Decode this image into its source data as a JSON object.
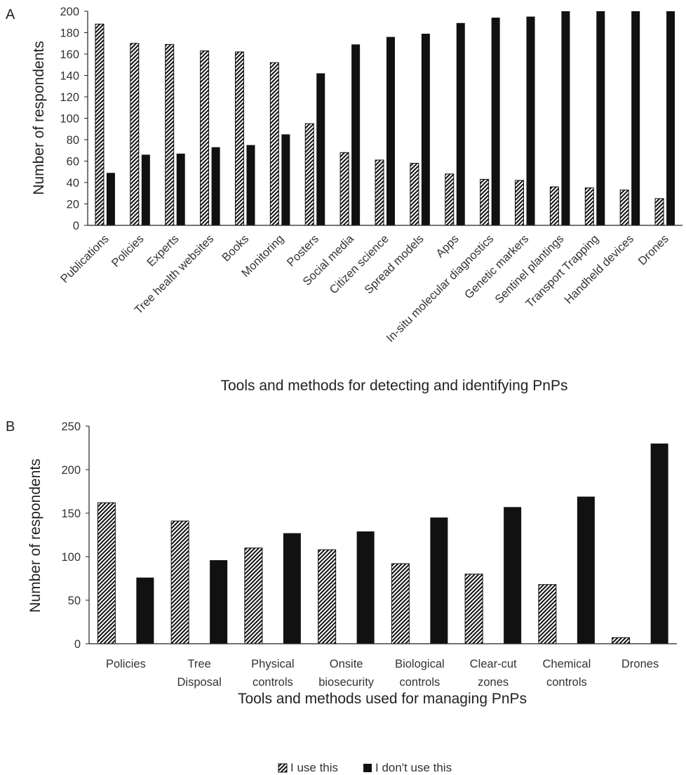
{
  "legend": {
    "use": "I use this",
    "dont_use": "I don't use this"
  },
  "colors": {
    "use_fill": "hatched-black-white",
    "dont_use": "#111111",
    "axis": "#222222"
  },
  "chart_data": [
    {
      "panel_label": "A",
      "type": "bar",
      "xlabel": "Tools and methods for detecting and identifying PnPs",
      "ylabel": "Number of respondents",
      "ylim": [
        0,
        200
      ],
      "yticks": [
        0,
        20,
        40,
        60,
        80,
        100,
        120,
        140,
        160,
        180,
        200
      ],
      "grid": false,
      "legend_position": "bottom-center",
      "categories": [
        "Publications",
        "Policies",
        "Experts",
        "Tree health websites",
        "Books",
        "Monitoring",
        "Posters",
        "Social media",
        "Citizen science",
        "Spread models",
        "Apps",
        "In-situ molecular diagnostics",
        "Genetic markers",
        "Sentinel plantings",
        "Transport Trapping",
        "Handheld devices",
        "Drones"
      ],
      "series": [
        {
          "name": "I use this",
          "values": [
            188,
            170,
            169,
            163,
            162,
            152,
            95,
            68,
            61,
            58,
            48,
            43,
            42,
            36,
            35,
            33,
            25
          ]
        },
        {
          "name": "I don't use this",
          "values": [
            49,
            66,
            67,
            73,
            75,
            85,
            142,
            169,
            176,
            179,
            189,
            194,
            195,
            200,
            200,
            200,
            200
          ]
        }
      ]
    },
    {
      "panel_label": "B",
      "type": "bar",
      "xlabel": "Tools and methods used for managing PnPs",
      "ylabel": "Number of respondents",
      "ylim": [
        0,
        250
      ],
      "yticks": [
        0,
        50,
        100,
        150,
        200,
        250
      ],
      "grid": false,
      "legend_position": "bottom-center",
      "categories": [
        [
          "Policies"
        ],
        [
          "Tree",
          "Disposal"
        ],
        [
          "Physical",
          "controls"
        ],
        [
          "Onsite",
          "biosecurity"
        ],
        [
          "Biological",
          "controls"
        ],
        [
          "Clear-cut",
          "zones"
        ],
        [
          "Chemical",
          "controls"
        ],
        [
          "Drones"
        ]
      ],
      "series": [
        {
          "name": "I use this",
          "values": [
            162,
            141,
            110,
            108,
            92,
            80,
            68,
            7
          ]
        },
        {
          "name": "I don't use this",
          "values": [
            76,
            96,
            127,
            129,
            145,
            157,
            169,
            230
          ]
        }
      ]
    }
  ]
}
